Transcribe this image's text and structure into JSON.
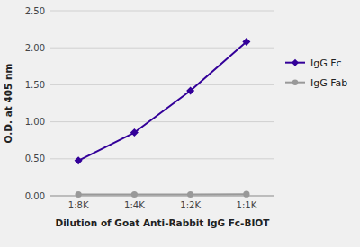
{
  "chart_data": {
    "type": "line",
    "x_label": "Dilution of Goat Anti-Rabbit IgG Fc-BIOT",
    "y_label": "O.D. at 405 nm",
    "categories": [
      "1:8K",
      "1:4K",
      "1:2K",
      "1:1K"
    ],
    "series": [
      {
        "name": "IgG Fc",
        "color": "#330099",
        "marker": "diamond",
        "values": [
          0.475,
          0.855,
          1.42,
          2.08
        ]
      },
      {
        "name": "IgG Fab",
        "color": "#999999",
        "marker": "circle",
        "values": [
          0.018,
          0.018,
          0.018,
          0.022
        ]
      }
    ],
    "ylim": [
      0.0,
      2.5
    ],
    "yticks": [
      {
        "value": 0.0,
        "label": "0.00"
      },
      {
        "value": 0.5,
        "label": "0.50"
      },
      {
        "value": 1.0,
        "label": "1.00"
      },
      {
        "value": 1.5,
        "label": "1.50"
      },
      {
        "value": 2.0,
        "label": "2.00"
      },
      {
        "value": 2.5,
        "label": "2.50"
      }
    ],
    "grid": true,
    "legend": "right"
  }
}
